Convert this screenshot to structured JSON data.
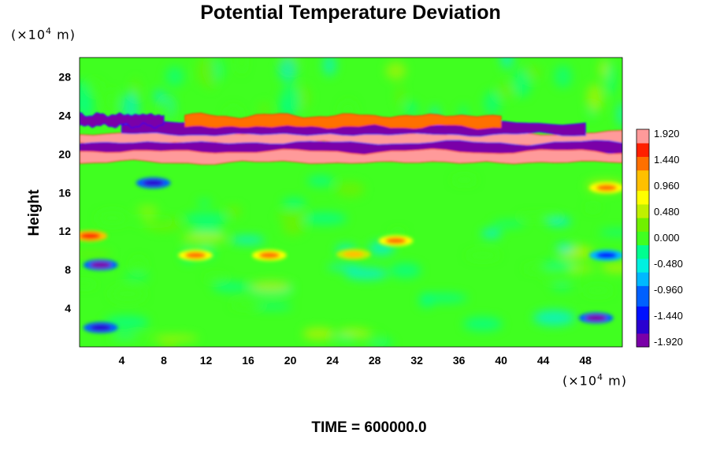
{
  "chart_data": {
    "type": "heatmap",
    "title": "Potential Temperature Deviation",
    "ylabel": "Height",
    "x_unit": {
      "prefix": "(×10",
      "exp": "4",
      "suffix": " m)"
    },
    "y_unit": {
      "prefix": "(×10",
      "exp": "4",
      "suffix": " m)"
    },
    "xlim": [
      0,
      51.5
    ],
    "ylim": [
      0,
      30
    ],
    "x_ticks": [
      4,
      8,
      12,
      16,
      20,
      24,
      28,
      32,
      36,
      40,
      44,
      48
    ],
    "y_ticks": [
      4,
      8,
      12,
      16,
      20,
      24,
      28
    ],
    "colorbar": {
      "range": [
        -1.92,
        1.92
      ],
      "labels": [
        "1.920",
        "1.440",
        "0.960",
        "0.480",
        "0.000",
        "-0.480",
        "-0.960",
        "-1.440",
        "-1.920"
      ],
      "colors_low_to_high": [
        "#7a00a8",
        "#2a00d0",
        "#0010ff",
        "#0060ff",
        "#00b8ff",
        "#00f0e0",
        "#00ff90",
        "#40ff20",
        "#70f000",
        "#c0f000",
        "#ffff00",
        "#ffc000",
        "#ff7000",
        "#ff2000",
        "#ff9a9a"
      ]
    },
    "background_value": 0.0,
    "bands": [
      {
        "x_range": [
          0,
          51.5
        ],
        "y_center": 21.6,
        "value": 1.92
      },
      {
        "x_range": [
          0,
          51.5
        ],
        "y_center": 20.6,
        "value": -1.92
      },
      {
        "x_range": [
          0,
          51.5
        ],
        "y_center": 19.7,
        "value": 1.92
      },
      {
        "x_range": [
          4,
          48
        ],
        "y_center": 22.6,
        "value": -1.92
      },
      {
        "x_range": [
          10,
          40
        ],
        "y_center": 23.4,
        "value": 1.2
      },
      {
        "x_range": [
          0,
          8
        ],
        "y_center": 23.5,
        "value": -1.7
      }
    ],
    "features": [
      {
        "x": 7,
        "y": 17,
        "value": -1.5
      },
      {
        "x": 2,
        "y": 2,
        "value": -1.6
      },
      {
        "x": 49,
        "y": 3,
        "value": -1.7
      },
      {
        "x": 50,
        "y": 9.5,
        "value": -1.3
      },
      {
        "x": 2,
        "y": 8.5,
        "value": -1.9
      },
      {
        "x": 18,
        "y": 9.5,
        "value": 1.4
      },
      {
        "x": 26,
        "y": 9.6,
        "value": 0.9
      },
      {
        "x": 30,
        "y": 11,
        "value": 1.2
      },
      {
        "x": 1,
        "y": 11.5,
        "value": 1.6
      },
      {
        "x": 11,
        "y": 9.5,
        "value": 1.2
      },
      {
        "x": 50,
        "y": 16.5,
        "value": 1.3
      }
    ],
    "time_label": "TIME = 600000.0"
  }
}
